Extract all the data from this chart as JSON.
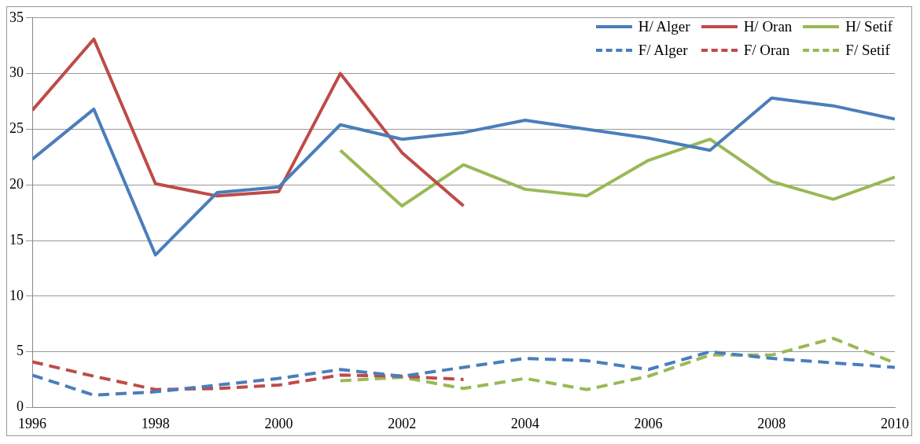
{
  "chart_data": {
    "type": "line",
    "x": [
      1996,
      1997,
      1998,
      1999,
      2000,
      2001,
      2002,
      2003,
      2004,
      2005,
      2006,
      2007,
      2008,
      2009,
      2010
    ],
    "xlim": [
      1996,
      2010
    ],
    "xticks": [
      1996,
      1998,
      2000,
      2002,
      2004,
      2006,
      2008,
      2010
    ],
    "ylim": [
      0,
      35
    ],
    "yticks": [
      0,
      5,
      10,
      15,
      20,
      25,
      30,
      35
    ],
    "grid": "y",
    "legend": "top right",
    "marker": "none",
    "series": [
      {
        "name": "H/ Alger",
        "color": "#4a7ebb",
        "line_style": "solid",
        "values": [
          22.3,
          26.8,
          13.7,
          19.3,
          19.8,
          25.4,
          24.1,
          24.7,
          25.8,
          25.0,
          24.2,
          23.1,
          27.8,
          27.1,
          25.9
        ]
      },
      {
        "name": "H/ Oran",
        "color": "#be4b48",
        "line_style": "solid",
        "values": [
          26.7,
          33.1,
          20.1,
          19.0,
          19.4,
          30.0,
          22.9,
          18.1,
          null,
          null,
          null,
          null,
          null,
          null,
          null
        ]
      },
      {
        "name": "H/ Setif",
        "color": "#98b954",
        "line_style": "solid",
        "values": [
          null,
          null,
          null,
          null,
          null,
          23.1,
          18.1,
          21.8,
          19.6,
          19.0,
          22.2,
          24.1,
          20.3,
          18.7,
          20.7
        ]
      },
      {
        "name": "F/ Alger",
        "color": "#4a7ebb",
        "line_style": "dashed",
        "values": [
          2.9,
          1.1,
          1.4,
          2.0,
          2.6,
          3.4,
          2.8,
          3.6,
          4.4,
          4.2,
          3.4,
          5.0,
          4.4,
          4.0,
          3.6
        ]
      },
      {
        "name": "F/ Oran",
        "color": "#be4b48",
        "line_style": "dashed",
        "values": [
          4.1,
          2.8,
          1.6,
          1.7,
          2.0,
          2.9,
          2.8,
          2.5,
          null,
          null,
          null,
          null,
          null,
          null,
          null
        ]
      },
      {
        "name": "F/ Setif",
        "color": "#98b954",
        "line_style": "dashed",
        "values": [
          null,
          null,
          null,
          null,
          null,
          2.4,
          2.7,
          1.7,
          2.6,
          1.6,
          2.8,
          4.7,
          4.7,
          6.2,
          4.0
        ]
      }
    ]
  }
}
